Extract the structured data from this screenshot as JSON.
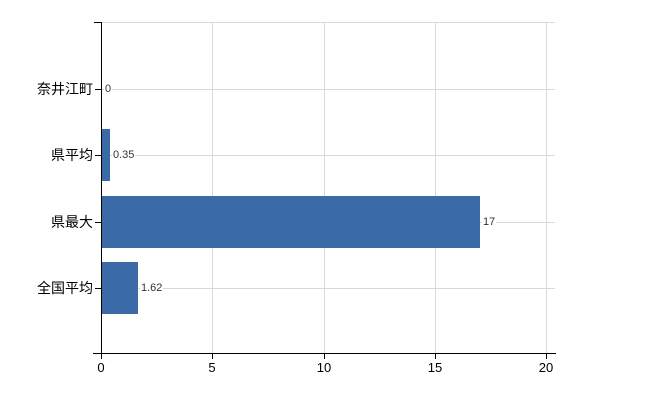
{
  "chart_data": {
    "type": "bar",
    "orientation": "horizontal",
    "title": "",
    "xlabel": "",
    "ylabel": "",
    "categories": [
      "奈井江町",
      "県平均",
      "県最大",
      "全国平均"
    ],
    "values": [
      0,
      0.35,
      17,
      1.62
    ],
    "value_labels": [
      "0",
      "0.35",
      "17",
      "1.62"
    ],
    "x_ticks": [
      0,
      5,
      10,
      15,
      20
    ],
    "x_tick_labels": [
      "0",
      "5",
      "10",
      "15",
      "20"
    ],
    "xlim": [
      0,
      20
    ],
    "grid": true,
    "legend": false,
    "colors": {
      "bar": "#3b6ba6",
      "grid": "#d9d9d9",
      "axis": "#000000",
      "category_text": "#000000",
      "value_text": "#333333",
      "tick_text": "#000000"
    }
  }
}
